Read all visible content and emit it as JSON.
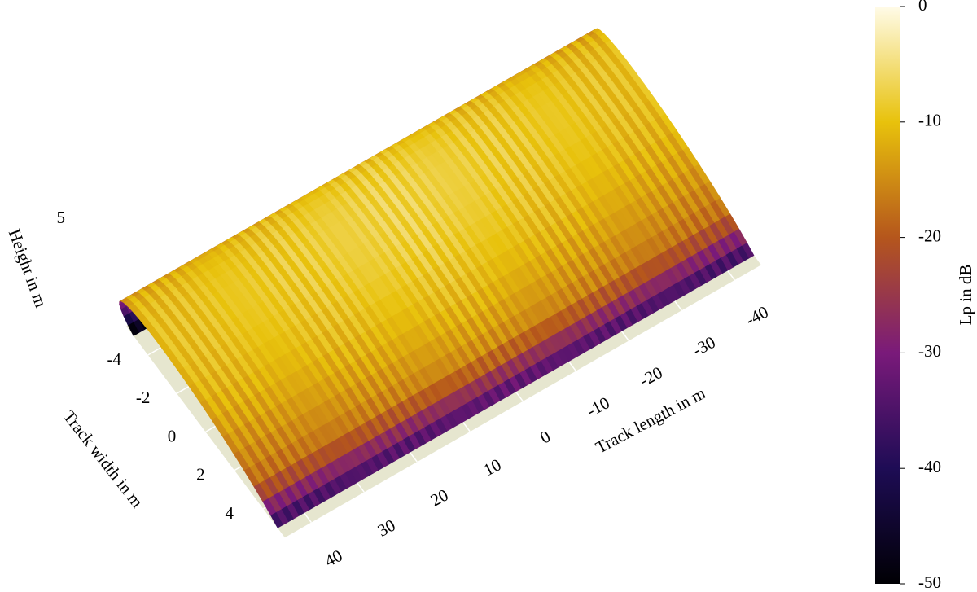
{
  "chart_data": {
    "type": "surface3d",
    "xlabel": "Track length in m",
    "ylabel": "Track width in m",
    "zlabel": "Height in m",
    "xlim": [
      -45,
      45
    ],
    "ylim": [
      -5.5,
      5.5
    ],
    "xticks": [
      -40,
      -30,
      -20,
      -10,
      0,
      10,
      20,
      30,
      40
    ],
    "yticks": [
      -4,
      -2,
      0,
      2,
      4
    ],
    "zticks": [
      5
    ],
    "colorbar_title": "Lp in dB",
    "clim": [
      -50,
      0
    ],
    "cticks": [
      0,
      -10,
      -20,
      -30,
      -40,
      -50
    ],
    "colorscale": [
      "#000004",
      "#1e0c55",
      "#7a1a7a",
      "#b5561c",
      "#e8c20c",
      "#fffbe8"
    ],
    "floor_color": "#e6e6cf"
  }
}
